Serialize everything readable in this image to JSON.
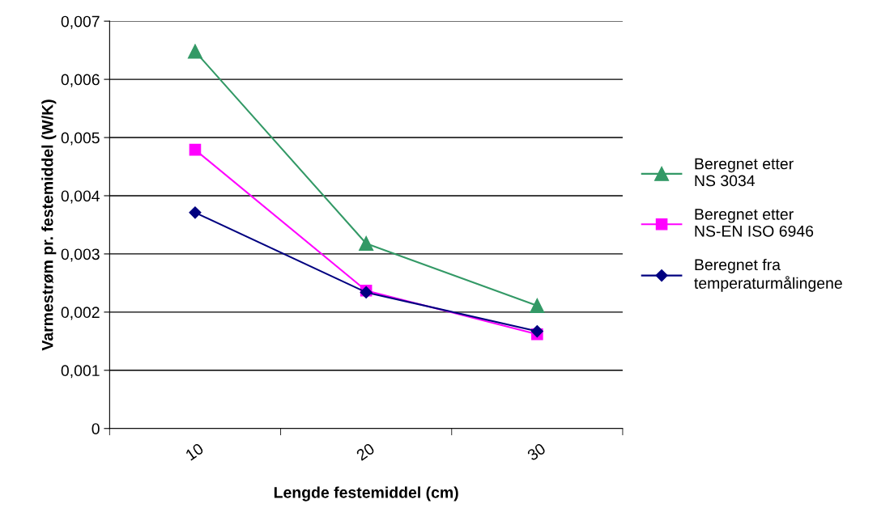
{
  "chart_data": {
    "type": "line",
    "xlabel": "Lengde festemiddel (cm)",
    "ylabel": "Varmestrøm pr. festemiddel (W/K)",
    "categories": [
      "10",
      "20",
      "30"
    ],
    "series": [
      {
        "name": "Beregnet etter\nNS 3034",
        "color": "#339966",
        "marker": "triangle",
        "values": [
          0.00648,
          0.00318,
          0.00211
        ]
      },
      {
        "name": "Beregnet etter\nNS-EN ISO 6946",
        "color": "#ff00ff",
        "marker": "square",
        "values": [
          0.00479,
          0.00237,
          0.00162
        ]
      },
      {
        "name": "Beregnet fra\ntemperaturmålingene",
        "color": "#000080",
        "marker": "diamond",
        "values": [
          0.00371,
          0.00234,
          0.00167
        ]
      }
    ],
    "ylim": [
      0,
      0.007
    ],
    "yticks": [
      {
        "value": 0,
        "label": "0"
      },
      {
        "value": 0.001,
        "label": "0,001"
      },
      {
        "value": 0.002,
        "label": "0,002"
      },
      {
        "value": 0.003,
        "label": "0,003"
      },
      {
        "value": 0.004,
        "label": "0,004"
      },
      {
        "value": 0.005,
        "label": "0,005"
      },
      {
        "value": 0.006,
        "label": "0,006"
      },
      {
        "value": 0.007,
        "label": "0,007"
      }
    ],
    "grid": "y",
    "legend": "right",
    "line_style": "solid"
  }
}
